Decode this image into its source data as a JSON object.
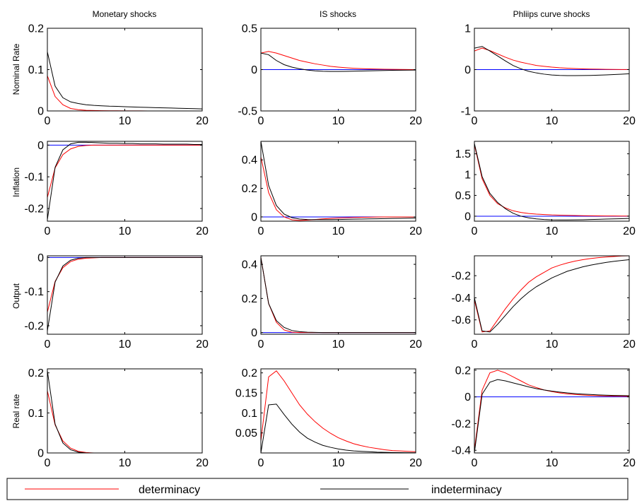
{
  "column_titles": [
    "Monetary shocks",
    "IS shocks",
    "Phliips curve shocks"
  ],
  "row_labels": [
    "Nominal Rate",
    "Inflation",
    "Output",
    "Real rate"
  ],
  "legend": {
    "entries": [
      {
        "label": "determinacy",
        "color": "#ff0000"
      },
      {
        "label": "indeterminacy",
        "color": "#000000"
      }
    ]
  },
  "colors": {
    "determinacy": "#ff0000",
    "indeterminacy": "#000000",
    "zero_line": "#0000ff"
  },
  "chart_data": [
    {
      "type": "line",
      "row": 0,
      "col": 0,
      "xlim": [
        0,
        20
      ],
      "ylim": [
        0,
        0.2
      ],
      "xticks": [
        0,
        10,
        20
      ],
      "yticks": [
        0,
        0.1,
        0.2
      ],
      "ytick_labels": [
        "0",
        "0.1",
        "0.2"
      ],
      "x": [
        0,
        1,
        2,
        3,
        4,
        5,
        6,
        7,
        8,
        9,
        10,
        11,
        12,
        13,
        14,
        15,
        16,
        17,
        18,
        19,
        20
      ],
      "series": [
        {
          "name": "determinacy",
          "values": [
            0.085,
            0.035,
            0.015,
            0.006,
            0.003,
            0.0015,
            0.001,
            0.0007,
            0.0005,
            0.0004,
            0.0003,
            0.0002,
            0.0002,
            0.0001,
            0.0001,
            0.0001,
            0.0001,
            0.0,
            0.0,
            0.0,
            0.0
          ]
        },
        {
          "name": "indeterminacy",
          "values": [
            0.143,
            0.06,
            0.032,
            0.022,
            0.018,
            0.015,
            0.0135,
            0.0125,
            0.0115,
            0.011,
            0.0103,
            0.0096,
            0.009,
            0.0085,
            0.008,
            0.0075,
            0.007,
            0.0065,
            0.006,
            0.0055,
            0.005
          ]
        }
      ]
    },
    {
      "type": "line",
      "row": 0,
      "col": 1,
      "xlim": [
        0,
        20
      ],
      "ylim": [
        -0.5,
        0.5
      ],
      "xticks": [
        0,
        10,
        20
      ],
      "yticks": [
        -0.5,
        0,
        0.5
      ],
      "ytick_labels": [
        "-0.5",
        "0",
        "0.5"
      ],
      "x": [
        0,
        1,
        2,
        3,
        4,
        5,
        6,
        7,
        8,
        9,
        10,
        11,
        12,
        13,
        14,
        15,
        16,
        17,
        18,
        19,
        20
      ],
      "series": [
        {
          "name": "determinacy",
          "values": [
            0.2,
            0.22,
            0.2,
            0.17,
            0.14,
            0.11,
            0.09,
            0.07,
            0.055,
            0.04,
            0.03,
            0.022,
            0.016,
            0.012,
            0.009,
            0.006,
            0.004,
            0.003,
            0.002,
            0.001,
            0.0
          ]
        },
        {
          "name": "indeterminacy",
          "values": [
            0.2,
            0.18,
            0.11,
            0.06,
            0.03,
            0.01,
            -0.005,
            -0.015,
            -0.02,
            -0.022,
            -0.022,
            -0.021,
            -0.019,
            -0.017,
            -0.015,
            -0.013,
            -0.011,
            -0.009,
            -0.007,
            -0.006,
            -0.005
          ]
        }
      ]
    },
    {
      "type": "line",
      "row": 0,
      "col": 2,
      "xlim": [
        0,
        20
      ],
      "ylim": [
        -1,
        1
      ],
      "xticks": [
        0,
        10,
        20
      ],
      "yticks": [
        -1,
        0,
        1
      ],
      "ytick_labels": [
        "-1",
        "0",
        "1"
      ],
      "x": [
        0,
        1,
        2,
        3,
        4,
        5,
        6,
        7,
        8,
        9,
        10,
        11,
        12,
        13,
        14,
        15,
        16,
        17,
        18,
        19,
        20
      ],
      "series": [
        {
          "name": "determinacy",
          "values": [
            0.45,
            0.52,
            0.46,
            0.38,
            0.3,
            0.23,
            0.18,
            0.14,
            0.1,
            0.08,
            0.06,
            0.045,
            0.035,
            0.025,
            0.018,
            0.013,
            0.01,
            0.007,
            0.005,
            0.003,
            0.002
          ]
        },
        {
          "name": "indeterminacy",
          "values": [
            0.52,
            0.56,
            0.45,
            0.33,
            0.21,
            0.1,
            0.02,
            -0.04,
            -0.08,
            -0.11,
            -0.13,
            -0.14,
            -0.145,
            -0.145,
            -0.143,
            -0.14,
            -0.135,
            -0.128,
            -0.12,
            -0.112,
            -0.1
          ]
        }
      ]
    },
    {
      "type": "line",
      "row": 1,
      "col": 0,
      "xlim": [
        0,
        20
      ],
      "ylim": [
        -0.24,
        0.012
      ],
      "xticks": [
        0,
        10,
        20
      ],
      "yticks": [
        -0.2,
        -0.1,
        0
      ],
      "ytick_labels": [
        "-0.2",
        "-0.1",
        "0"
      ],
      "x": [
        0,
        1,
        2,
        3,
        4,
        5,
        6,
        7,
        8,
        9,
        10,
        11,
        12,
        13,
        14,
        15,
        16,
        17,
        18,
        19,
        20
      ],
      "series": [
        {
          "name": "determinacy",
          "values": [
            -0.165,
            -0.072,
            -0.03,
            -0.012,
            -0.004,
            -0.001,
            0.0,
            0.0,
            0.0,
            0.0,
            0.0,
            0.0,
            0.0,
            0.0,
            0.0,
            0.0,
            0.0,
            0.0,
            0.0,
            0.0,
            0.0
          ]
        },
        {
          "name": "indeterminacy",
          "values": [
            -0.235,
            -0.07,
            -0.015,
            0.004,
            0.009,
            0.009,
            0.008,
            0.007,
            0.006,
            0.006,
            0.005,
            0.005,
            0.004,
            0.004,
            0.004,
            0.003,
            0.003,
            0.003,
            0.003,
            0.002,
            0.002
          ]
        }
      ]
    },
    {
      "type": "line",
      "row": 1,
      "col": 1,
      "xlim": [
        0,
        20
      ],
      "ylim": [
        -0.03,
        0.53
      ],
      "xticks": [
        0,
        10,
        20
      ],
      "yticks": [
        0,
        0.2,
        0.4
      ],
      "ytick_labels": [
        "0",
        "0.2",
        "0.4"
      ],
      "x": [
        0,
        1,
        2,
        3,
        4,
        5,
        6,
        7,
        8,
        9,
        10,
        11,
        12,
        13,
        14,
        15,
        16,
        17,
        18,
        19,
        20
      ],
      "series": [
        {
          "name": "determinacy",
          "values": [
            0.42,
            0.17,
            0.05,
            0.0,
            -0.02,
            -0.025,
            -0.022,
            -0.018,
            -0.014,
            -0.011,
            -0.008,
            -0.006,
            -0.004,
            -0.003,
            -0.002,
            -0.001,
            0.0,
            0.0,
            0.0,
            0.0,
            0.0
          ]
        },
        {
          "name": "indeterminacy",
          "values": [
            0.53,
            0.22,
            0.08,
            0.02,
            -0.005,
            -0.015,
            -0.018,
            -0.019,
            -0.019,
            -0.019,
            -0.018,
            -0.017,
            -0.016,
            -0.015,
            -0.014,
            -0.013,
            -0.012,
            -0.011,
            -0.01,
            -0.009,
            -0.008
          ]
        }
      ]
    },
    {
      "type": "line",
      "row": 1,
      "col": 2,
      "xlim": [
        0,
        20
      ],
      "ylim": [
        -0.12,
        1.8
      ],
      "xticks": [
        0,
        10,
        20
      ],
      "yticks": [
        0,
        0.5,
        1,
        1.5
      ],
      "ytick_labels": [
        "0",
        "0.5",
        "1",
        "1.5"
      ],
      "x": [
        0,
        1,
        2,
        3,
        4,
        5,
        6,
        7,
        8,
        9,
        10,
        11,
        12,
        13,
        14,
        15,
        16,
        17,
        18,
        19,
        20
      ],
      "series": [
        {
          "name": "determinacy",
          "values": [
            1.72,
            0.9,
            0.5,
            0.3,
            0.2,
            0.13,
            0.09,
            0.065,
            0.05,
            0.04,
            0.03,
            0.025,
            0.02,
            0.015,
            0.012,
            0.01,
            0.008,
            0.006,
            0.005,
            0.004,
            0.003
          ]
        },
        {
          "name": "indeterminacy",
          "values": [
            1.75,
            0.95,
            0.55,
            0.33,
            0.18,
            0.07,
            0.0,
            -0.04,
            -0.065,
            -0.08,
            -0.088,
            -0.09,
            -0.09,
            -0.088,
            -0.085,
            -0.08,
            -0.075,
            -0.07,
            -0.065,
            -0.06,
            -0.055
          ]
        }
      ]
    },
    {
      "type": "line",
      "row": 2,
      "col": 0,
      "xlim": [
        0,
        20
      ],
      "ylim": [
        -0.225,
        0.005
      ],
      "xticks": [
        0,
        10,
        20
      ],
      "yticks": [
        -0.2,
        -0.1,
        0
      ],
      "ytick_labels": [
        "-0.2",
        "-0.1",
        "0"
      ],
      "x": [
        0,
        1,
        2,
        3,
        4,
        5,
        6,
        7,
        8,
        9,
        10,
        11,
        12,
        13,
        14,
        15,
        16,
        17,
        18,
        19,
        20
      ],
      "series": [
        {
          "name": "determinacy",
          "values": [
            -0.16,
            -0.07,
            -0.03,
            -0.012,
            -0.005,
            -0.002,
            -0.001,
            0.0,
            0.0,
            0.0,
            0.0,
            0.0,
            0.0,
            0.0,
            0.0,
            0.0,
            0.0,
            0.0,
            0.0,
            0.0,
            0.0
          ]
        },
        {
          "name": "indeterminacy",
          "values": [
            -0.215,
            -0.072,
            -0.025,
            -0.008,
            -0.002,
            0.0,
            0.0,
            0.0,
            0.0,
            0.0,
            0.0,
            0.0,
            0.0,
            0.0,
            0.0,
            0.0,
            0.0,
            0.0,
            0.0,
            0.0,
            0.0
          ]
        }
      ]
    },
    {
      "type": "line",
      "row": 2,
      "col": 1,
      "xlim": [
        0,
        20
      ],
      "ylim": [
        -0.01,
        0.45
      ],
      "xticks": [
        0,
        10,
        20
      ],
      "yticks": [
        0,
        0.2,
        0.4
      ],
      "ytick_labels": [
        "0",
        "0.2",
        "0.4"
      ],
      "x": [
        0,
        1,
        2,
        3,
        4,
        5,
        6,
        7,
        8,
        9,
        10,
        11,
        12,
        13,
        14,
        15,
        16,
        17,
        18,
        19,
        20
      ],
      "series": [
        {
          "name": "determinacy",
          "values": [
            0.44,
            0.17,
            0.06,
            0.015,
            0.002,
            0.0,
            0.0,
            0.0,
            0.0,
            0.0,
            0.0,
            0.0,
            0.0,
            0.0,
            0.0,
            0.0,
            0.0,
            0.0,
            0.0,
            0.0,
            0.0
          ]
        },
        {
          "name": "indeterminacy",
          "values": [
            0.44,
            0.17,
            0.07,
            0.03,
            0.012,
            0.005,
            0.002,
            0.001,
            0.0,
            0.0,
            0.0,
            0.0,
            0.0,
            0.0,
            0.0,
            0.0,
            0.0,
            0.0,
            0.0,
            0.0,
            0.0
          ]
        }
      ]
    },
    {
      "type": "line",
      "row": 2,
      "col": 2,
      "xlim": [
        0,
        20
      ],
      "ylim": [
        -0.73,
        -0.02
      ],
      "xticks": [
        0,
        10,
        20
      ],
      "yticks": [
        -0.6,
        -0.4,
        -0.2
      ],
      "ytick_labels": [
        "-0.6",
        "-0.4",
        "-0.2"
      ],
      "x": [
        0,
        1,
        2,
        3,
        4,
        5,
        6,
        7,
        8,
        9,
        10,
        11,
        12,
        13,
        14,
        15,
        16,
        17,
        18,
        19,
        20
      ],
      "series": [
        {
          "name": "determinacy",
          "values": [
            -0.42,
            -0.71,
            -0.7,
            -0.6,
            -0.5,
            -0.41,
            -0.33,
            -0.26,
            -0.21,
            -0.17,
            -0.13,
            -0.105,
            -0.085,
            -0.068,
            -0.055,
            -0.045,
            -0.037,
            -0.031,
            -0.026,
            -0.022,
            -0.02
          ]
        },
        {
          "name": "indeterminacy",
          "values": [
            -0.4,
            -0.7,
            -0.71,
            -0.64,
            -0.56,
            -0.48,
            -0.41,
            -0.35,
            -0.3,
            -0.26,
            -0.22,
            -0.19,
            -0.16,
            -0.14,
            -0.12,
            -0.105,
            -0.092,
            -0.08,
            -0.07,
            -0.062,
            -0.055
          ]
        }
      ]
    },
    {
      "type": "line",
      "row": 3,
      "col": 0,
      "xlim": [
        0,
        20
      ],
      "ylim": [
        0,
        0.21
      ],
      "xticks": [
        0,
        10,
        20
      ],
      "yticks": [
        0,
        0.1,
        0.2
      ],
      "ytick_labels": [
        "0",
        "0.1",
        "0.2"
      ],
      "x": [
        0,
        1,
        2,
        3,
        4,
        5,
        6,
        7,
        8,
        9,
        10,
        11,
        12,
        13,
        14,
        15,
        16,
        17,
        18,
        19,
        20
      ],
      "series": [
        {
          "name": "determinacy",
          "values": [
            0.155,
            0.07,
            0.03,
            0.012,
            0.004,
            0.001,
            0.0,
            0.0,
            0.0,
            0.0,
            0.0,
            0.0,
            0.0,
            0.0,
            0.0,
            0.0,
            0.0,
            0.0,
            0.0,
            0.0,
            0.0
          ]
        },
        {
          "name": "indeterminacy",
          "values": [
            0.205,
            0.072,
            0.025,
            0.008,
            0.002,
            0.0,
            0.0,
            0.0,
            0.0,
            0.0,
            0.0,
            0.0,
            0.0,
            0.0,
            0.0,
            0.0,
            0.0,
            0.0,
            0.0,
            0.0,
            0.0
          ]
        }
      ]
    },
    {
      "type": "line",
      "row": 3,
      "col": 1,
      "xlim": [
        0,
        20
      ],
      "ylim": [
        0,
        0.21
      ],
      "xticks": [
        0,
        10,
        20
      ],
      "yticks": [
        0.05,
        0.1,
        0.15,
        0.2
      ],
      "ytick_labels": [
        "0.05",
        "0.1",
        "0.15",
        "0.2"
      ],
      "x": [
        0,
        1,
        2,
        3,
        4,
        5,
        6,
        7,
        8,
        9,
        10,
        11,
        12,
        13,
        14,
        15,
        16,
        17,
        18,
        19,
        20
      ],
      "series": [
        {
          "name": "determinacy",
          "values": [
            0.03,
            0.19,
            0.205,
            0.18,
            0.15,
            0.12,
            0.097,
            0.078,
            0.062,
            0.049,
            0.038,
            0.03,
            0.023,
            0.018,
            0.014,
            0.011,
            0.008,
            0.006,
            0.005,
            0.004,
            0.003
          ]
        },
        {
          "name": "indeterminacy",
          "values": [
            0.0,
            0.12,
            0.122,
            0.096,
            0.072,
            0.052,
            0.037,
            0.027,
            0.019,
            0.014,
            0.01,
            0.007,
            0.005,
            0.004,
            0.003,
            0.002,
            0.0015,
            0.001,
            0.0008,
            0.0006,
            0.0005
          ]
        }
      ]
    },
    {
      "type": "line",
      "row": 3,
      "col": 2,
      "xlim": [
        0,
        20
      ],
      "ylim": [
        -0.42,
        0.21
      ],
      "xticks": [
        0,
        10,
        20
      ],
      "yticks": [
        -0.4,
        -0.2,
        0,
        0.2
      ],
      "ytick_labels": [
        "-0.4",
        "-0.2",
        "0",
        "0.2"
      ],
      "x": [
        0,
        1,
        2,
        3,
        4,
        5,
        6,
        7,
        8,
        9,
        10,
        11,
        12,
        13,
        14,
        15,
        16,
        17,
        18,
        19,
        20
      ],
      "series": [
        {
          "name": "determinacy",
          "values": [
            -0.4,
            0.05,
            0.18,
            0.2,
            0.18,
            0.15,
            0.12,
            0.09,
            0.07,
            0.052,
            0.04,
            0.03,
            0.023,
            0.018,
            0.014,
            0.011,
            0.009,
            0.007,
            0.006,
            0.005,
            0.004
          ]
        },
        {
          "name": "indeterminacy",
          "values": [
            -0.42,
            0.02,
            0.11,
            0.13,
            0.12,
            0.105,
            0.09,
            0.075,
            0.062,
            0.052,
            0.043,
            0.036,
            0.03,
            0.025,
            0.021,
            0.018,
            0.015,
            0.013,
            0.011,
            0.01,
            0.009
          ]
        }
      ]
    }
  ]
}
